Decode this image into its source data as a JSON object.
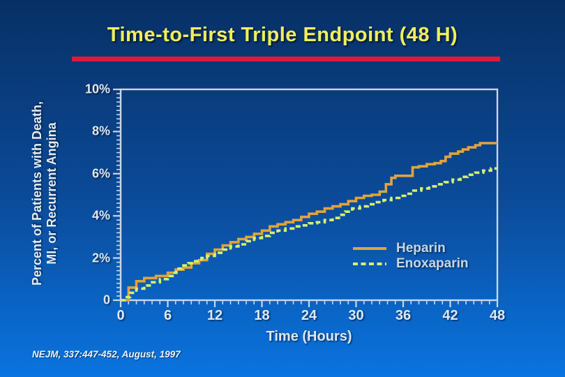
{
  "page": {
    "title": "Time-to-First Triple Endpoint (48 H)",
    "citation": "NEJM, 337:447-452, August, 1997"
  },
  "colors": {
    "background_top": "#083064",
    "background_bottom": "#0a74e0",
    "title_text": "#f0ef5c",
    "accent_bar": "#e0173c",
    "axis": "#c9d7e8",
    "tick_label_text": "#dfe8f3",
    "heparin": "#dfa43c",
    "enoxaparin": "#d6f06e"
  },
  "chart_data": {
    "type": "line",
    "subtype": "step-after",
    "title": "Time-to-First Triple Endpoint (48 H)",
    "xlabel": "Time (Hours)",
    "ylabel": "Percent of Patients with Death, MI, or Recurrent Angina",
    "ylabel_lines": [
      "Percent of Patients with Death,",
      "MI, or Recurrent Angina"
    ],
    "xlim": [
      0,
      48
    ],
    "ylim": [
      0,
      10
    ],
    "x_ticks": [
      0,
      6,
      12,
      18,
      24,
      30,
      36,
      42,
      48
    ],
    "x_tick_labels": [
      "0",
      "6",
      "12",
      "18",
      "24",
      "30",
      "36",
      "42",
      "48"
    ],
    "x_minor_tick_step": 1,
    "y_ticks": [
      0,
      2,
      4,
      6,
      8,
      10
    ],
    "y_tick_labels": [
      "0",
      "2%",
      "4%",
      "6%",
      "8%",
      "10%"
    ],
    "y_minor_tick_step": 0.2,
    "grid": false,
    "legend_position": "inside lower right",
    "series": [
      {
        "name": "Heparin",
        "style": "solid",
        "color": "#dfa43c",
        "points": [
          [
            0,
            0
          ],
          [
            1,
            0.6
          ],
          [
            2,
            0.9
          ],
          [
            3,
            1.05
          ],
          [
            4.5,
            1.15
          ],
          [
            6,
            1.3
          ],
          [
            7,
            1.45
          ],
          [
            8,
            1.55
          ],
          [
            9,
            1.75
          ],
          [
            10,
            1.9
          ],
          [
            11,
            2.2
          ],
          [
            12,
            2.4
          ],
          [
            13,
            2.6
          ],
          [
            14,
            2.75
          ],
          [
            15,
            2.9
          ],
          [
            16,
            3.0
          ],
          [
            17,
            3.15
          ],
          [
            18,
            3.3
          ],
          [
            19,
            3.5
          ],
          [
            20,
            3.6
          ],
          [
            21,
            3.7
          ],
          [
            22,
            3.8
          ],
          [
            23,
            3.95
          ],
          [
            24,
            4.1
          ],
          [
            25,
            4.2
          ],
          [
            26,
            4.35
          ],
          [
            27,
            4.45
          ],
          [
            28,
            4.55
          ],
          [
            29,
            4.7
          ],
          [
            30,
            4.85
          ],
          [
            31,
            4.95
          ],
          [
            32,
            5.0
          ],
          [
            33,
            5.15
          ],
          [
            33.8,
            5.5
          ],
          [
            34.5,
            5.8
          ],
          [
            35,
            5.9
          ],
          [
            37.2,
            6.3
          ],
          [
            38,
            6.35
          ],
          [
            39,
            6.45
          ],
          [
            40,
            6.5
          ],
          [
            40.8,
            6.6
          ],
          [
            41.4,
            6.8
          ],
          [
            42,
            6.95
          ],
          [
            43,
            7.05
          ],
          [
            43.6,
            7.15
          ],
          [
            44.3,
            7.25
          ],
          [
            45.2,
            7.35
          ],
          [
            45.8,
            7.45
          ],
          [
            48,
            7.45
          ]
        ]
      },
      {
        "name": "Enoxaparin",
        "style": "dashed",
        "color": "#d6f06e",
        "points": [
          [
            0,
            0
          ],
          [
            0.5,
            0.15
          ],
          [
            1.2,
            0.35
          ],
          [
            2,
            0.55
          ],
          [
            3,
            0.7
          ],
          [
            4,
            0.85
          ],
          [
            5,
            1.0
          ],
          [
            6,
            1.15
          ],
          [
            6.6,
            1.3
          ],
          [
            7.1,
            1.5
          ],
          [
            7.8,
            1.65
          ],
          [
            8.6,
            1.75
          ],
          [
            9.5,
            1.85
          ],
          [
            10.3,
            2.0
          ],
          [
            11,
            2.1
          ],
          [
            12,
            2.25
          ],
          [
            13,
            2.4
          ],
          [
            14,
            2.55
          ],
          [
            15,
            2.65
          ],
          [
            16,
            2.8
          ],
          [
            17,
            2.95
          ],
          [
            18,
            3.05
          ],
          [
            19,
            3.2
          ],
          [
            20,
            3.3
          ],
          [
            21,
            3.4
          ],
          [
            22,
            3.5
          ],
          [
            23,
            3.55
          ],
          [
            24,
            3.65
          ],
          [
            25,
            3.7
          ],
          [
            26,
            3.8
          ],
          [
            27,
            3.9
          ],
          [
            27.8,
            4.05
          ],
          [
            28.6,
            4.2
          ],
          [
            29.5,
            4.35
          ],
          [
            30.5,
            4.45
          ],
          [
            31.5,
            4.55
          ],
          [
            32.5,
            4.65
          ],
          [
            33.5,
            4.75
          ],
          [
            34.5,
            4.85
          ],
          [
            35.5,
            4.95
          ],
          [
            36.5,
            5.05
          ],
          [
            37.3,
            5.2
          ],
          [
            38.3,
            5.3
          ],
          [
            39.3,
            5.4
          ],
          [
            40.3,
            5.5
          ],
          [
            41.3,
            5.6
          ],
          [
            42.3,
            5.72
          ],
          [
            43.3,
            5.85
          ],
          [
            44.2,
            5.95
          ],
          [
            45.2,
            6.05
          ],
          [
            46.2,
            6.15
          ],
          [
            47.2,
            6.25
          ],
          [
            48,
            6.25
          ]
        ]
      }
    ]
  }
}
